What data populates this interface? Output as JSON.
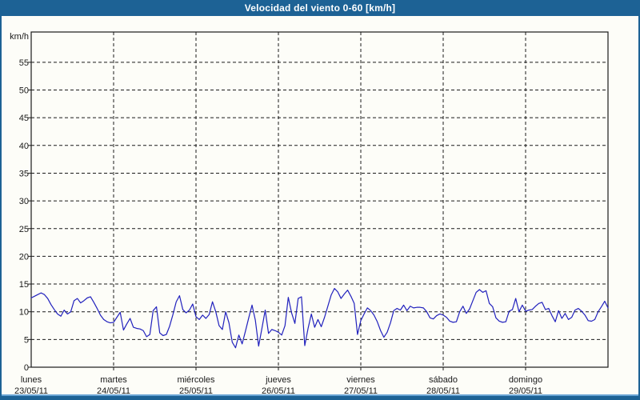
{
  "window": {
    "title": "Velocidad del viento 0-60 [km/h]"
  },
  "colors": {
    "frame_blue": "#1d6295",
    "accent_light_blue": "#68a3d4",
    "line_navy": "#2121bd",
    "axis_black": "#1a1a1a",
    "background": "#fdfdf8"
  },
  "y_axis": {
    "unit_label": "km/h",
    "tick_labels": [
      "0",
      "5",
      "10",
      "15",
      "20",
      "25",
      "30",
      "35",
      "40",
      "45",
      "50",
      "55"
    ]
  },
  "x_axis": {
    "days": [
      {
        "name": "lunes",
        "date": "23/05/11"
      },
      {
        "name": "martes",
        "date": "24/05/11"
      },
      {
        "name": "miércoles",
        "date": "25/05/11"
      },
      {
        "name": "jueves",
        "date": "26/05/11"
      },
      {
        "name": "viernes",
        "date": "27/05/11"
      },
      {
        "name": "sábado",
        "date": "28/05/11"
      },
      {
        "name": "domingo",
        "date": "29/05/11"
      }
    ]
  },
  "chart_data": {
    "type": "line",
    "title": "Velocidad del viento 0-60 [km/h]",
    "ylabel": "km/h",
    "ylim": [
      0,
      60
    ],
    "grid": "dashed",
    "legend": "none",
    "points_per_day": 25,
    "categories": [
      "lunes 23/05/11",
      "martes 24/05/11",
      "miércoles 25/05/11",
      "jueves 26/05/11",
      "viernes 27/05/11",
      "sábado 28/05/11",
      "domingo 29/05/11"
    ],
    "values": [
      12.5,
      12.8,
      13.1,
      13.4,
      13.1,
      12.4,
      11.3,
      10.4,
      9.6,
      9.2,
      10.3,
      9.6,
      10.0,
      12.0,
      12.4,
      11.6,
      12.0,
      12.5,
      12.7,
      11.7,
      10.6,
      9.4,
      8.6,
      8.2,
      8.0,
      8.1,
      9.0,
      9.9,
      6.7,
      7.8,
      8.8,
      7.2,
      7.0,
      6.9,
      6.6,
      5.5,
      5.9,
      10.2,
      10.9,
      6.2,
      5.7,
      5.9,
      7.4,
      9.5,
      11.8,
      12.9,
      10.4,
      9.8,
      10.3,
      11.4,
      9.1,
      8.6,
      9.4,
      8.8,
      9.5,
      11.8,
      10.0,
      7.5,
      6.8,
      10.0,
      8.0,
      4.5,
      3.5,
      5.8,
      4.2,
      6.5,
      8.9,
      11.2,
      8.5,
      3.8,
      7.0,
      10.3,
      6.1,
      6.8,
      6.6,
      6.3,
      5.8,
      7.5,
      12.6,
      9.8,
      7.9,
      12.4,
      12.7,
      3.9,
      7.0,
      9.6,
      7.2,
      8.6,
      7.3,
      9.0,
      11.0,
      13.0,
      14.2,
      13.6,
      12.4,
      13.2,
      13.9,
      12.8,
      11.5,
      5.9,
      8.4,
      9.6,
      10.7,
      10.2,
      9.4,
      8.2,
      6.6,
      5.4,
      6.3,
      8.0,
      10.2,
      10.6,
      10.3,
      11.2,
      10.2,
      11.0,
      10.7,
      10.8,
      10.8,
      10.7,
      10.0,
      8.9,
      8.7,
      9.3,
      9.6,
      9.4,
      9.0,
      8.3,
      8.1,
      8.2,
      10.0,
      11.0,
      9.7,
      10.5,
      12.0,
      13.5,
      14.0,
      13.5,
      13.8,
      11.5,
      10.9,
      8.9,
      8.3,
      8.1,
      8.2,
      10.1,
      10.4,
      12.4,
      10.0,
      11.2,
      10.1,
      10.3,
      10.4,
      11.0,
      11.5,
      11.7,
      10.4,
      10.6,
      9.3,
      8.2,
      10.2,
      8.8,
      9.7,
      8.6,
      9.0,
      10.3,
      10.6,
      10.1,
      9.4,
      8.4,
      8.3,
      8.6,
      10.0,
      10.9,
      11.9,
      10.7
    ]
  }
}
